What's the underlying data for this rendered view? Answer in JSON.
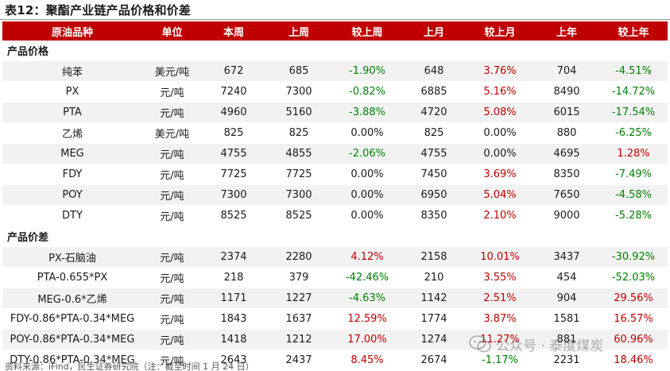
{
  "title": "表12：聚酯产业链产品价格和价差",
  "headers": [
    "原油品种",
    "单位",
    "本周",
    "上周",
    "较上周",
    "上月",
    "较上月",
    "上年",
    "较上年"
  ],
  "sections": [
    {
      "label": "产品价格",
      "rows": [
        {
          "name": "纯苯",
          "unit": "美元/吨",
          "this_week": "672",
          "last_week": "685",
          "wow": "-1.90%",
          "last_month": "648",
          "mom": "3.76%",
          "last_year": "704",
          "yoy": "-4.51%"
        },
        {
          "name": "PX",
          "unit": "元/吨",
          "this_week": "7240",
          "last_week": "7300",
          "wow": "-0.82%",
          "last_month": "6885",
          "mom": "5.16%",
          "last_year": "8490",
          "yoy": "-14.72%"
        },
        {
          "name": "PTA",
          "unit": "元/吨",
          "this_week": "4960",
          "last_week": "5160",
          "wow": "-3.88%",
          "last_month": "4720",
          "mom": "5.08%",
          "last_year": "6015",
          "yoy": "-17.54%"
        },
        {
          "name": "乙烯",
          "unit": "美元/吨",
          "this_week": "825",
          "last_week": "825",
          "wow": "0.00%",
          "last_month": "825",
          "mom": "0.00%",
          "last_year": "880",
          "yoy": "-6.25%"
        },
        {
          "name": "MEG",
          "unit": "元/吨",
          "this_week": "4755",
          "last_week": "4855",
          "wow": "-2.06%",
          "last_month": "4755",
          "mom": "0.00%",
          "last_year": "4695",
          "yoy": "1.28%"
        },
        {
          "name": "FDY",
          "unit": "元/吨",
          "this_week": "7725",
          "last_week": "7725",
          "wow": "0.00%",
          "last_month": "7450",
          "mom": "3.69%",
          "last_year": "8350",
          "yoy": "-7.49%"
        },
        {
          "name": "POY",
          "unit": "元/吨",
          "this_week": "7300",
          "last_week": "7300",
          "wow": "0.00%",
          "last_month": "6950",
          "mom": "5.04%",
          "last_year": "7650",
          "yoy": "-4.58%"
        },
        {
          "name": "DTY",
          "unit": "元/吨",
          "this_week": "8525",
          "last_week": "8525",
          "wow": "0.00%",
          "last_month": "8350",
          "mom": "2.10%",
          "last_year": "9000",
          "yoy": "-5.28%"
        }
      ]
    },
    {
      "label": "产品价差",
      "rows": [
        {
          "name": "PX-石脑油",
          "unit": "元/吨",
          "this_week": "2374",
          "last_week": "2280",
          "wow": "4.12%",
          "last_month": "2158",
          "mom": "10.01%",
          "last_year": "3437",
          "yoy": "-30.92%"
        },
        {
          "name": "PTA-0.655*PX",
          "unit": "元/吨",
          "this_week": "218",
          "last_week": "379",
          "wow": "-42.46%",
          "last_month": "210",
          "mom": "3.55%",
          "last_year": "454",
          "yoy": "-52.03%"
        },
        {
          "name": "MEG-0.6*乙烯",
          "unit": "元/吨",
          "this_week": "1171",
          "last_week": "1227",
          "wow": "-4.63%",
          "last_month": "1142",
          "mom": "2.51%",
          "last_year": "904",
          "yoy": "29.56%"
        },
        {
          "name": "FDY-0.86*PTA-0.34*MEG",
          "unit": "元/吨",
          "this_week": "1843",
          "last_week": "1637",
          "wow": "12.59%",
          "last_month": "1774",
          "mom": "3.87%",
          "last_year": "1581",
          "yoy": "16.57%"
        },
        {
          "name": "POY-0.86*PTA-0.34*MEG",
          "unit": "元/吨",
          "this_week": "1418",
          "last_week": "1212",
          "wow": "17.00%",
          "last_month": "1274",
          "mom": "11.27%",
          "last_year": "881",
          "yoy": "60.96%"
        },
        {
          "name": "DTY-0.86*PTA-0.34*MEG",
          "unit": "元/吨",
          "this_week": "2643",
          "last_week": "2437",
          "wow": "8.45%",
          "last_month": "2674",
          "mom": "-1.17%",
          "last_year": "2231",
          "yoy": "18.46%"
        }
      ]
    }
  ],
  "source": "资料来源：iFind，民生证券研究院（注：截至时间 1 月 24 日）",
  "watermark": "公众号 · 泰度煤炭",
  "colors": {
    "header_bg": "#c00000",
    "positive": "#c00000",
    "negative": "#008000",
    "zebra": "#f2f2f2"
  }
}
